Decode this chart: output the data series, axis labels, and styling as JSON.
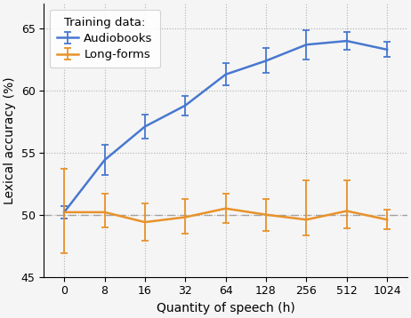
{
  "x_values": [
    0,
    8,
    16,
    32,
    64,
    128,
    256,
    512,
    1024
  ],
  "x_labels": [
    "0",
    "8",
    "16",
    "32",
    "64",
    "128",
    "256",
    "512",
    "1024"
  ],
  "audiobooks_y": [
    50.2,
    54.4,
    57.1,
    58.8,
    61.3,
    62.4,
    63.7,
    64.0,
    63.3
  ],
  "audiobooks_yerr_lo": [
    0.5,
    1.2,
    1.0,
    0.8,
    0.9,
    1.0,
    1.2,
    0.7,
    0.6
  ],
  "audiobooks_yerr_hi": [
    0.5,
    1.2,
    1.0,
    0.8,
    0.9,
    1.0,
    1.2,
    0.7,
    0.6
  ],
  "longforms_y": [
    50.2,
    50.2,
    49.4,
    49.8,
    50.5,
    50.0,
    49.6,
    50.3,
    49.6
  ],
  "longforms_yerr_lo": [
    3.3,
    1.2,
    1.5,
    1.3,
    1.2,
    1.3,
    1.3,
    1.4,
    0.8
  ],
  "longforms_yerr_hi": [
    3.5,
    1.5,
    1.5,
    1.5,
    1.2,
    1.3,
    3.2,
    2.5,
    0.8
  ],
  "audiobooks_color": "#4878cf",
  "longforms_color": "#e8922a",
  "baseline_y": 50.0,
  "baseline_color": "#888888",
  "ylabel": "Lexical accuracy (%)",
  "xlabel": "Quantity of speech (h)",
  "legend_title": "Training data:",
  "legend_audiobooks": "Audiobooks",
  "legend_longforms": "Long-forms",
  "ylim": [
    45,
    67
  ],
  "yticks": [
    45,
    50,
    55,
    60,
    65
  ],
  "grid_color": "#b0b0b0",
  "background_color": "#f5f5f5"
}
